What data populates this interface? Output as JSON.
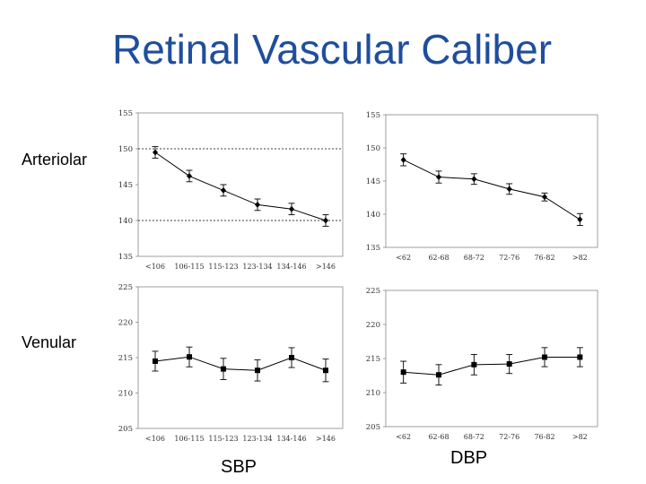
{
  "slide": {
    "title": "Retinal Vascular Caliber",
    "row_labels": [
      "Arteriolar",
      "Venular"
    ],
    "col_labels": [
      "SBP",
      "DBP"
    ]
  },
  "colors": {
    "title": "#1f4e9c",
    "line": "#000000",
    "reference_line": "#000000"
  },
  "chart_data": [
    {
      "id": "arteriolar-sbp",
      "type": "line",
      "row": "Arteriolar",
      "column": "SBP",
      "categories": [
        "<106",
        "106-115",
        "115-123",
        "123-134",
        "134-146",
        ">146"
      ],
      "values": [
        149.5,
        146.2,
        144.2,
        142.2,
        141.6,
        140.0
      ],
      "errors": [
        0.8,
        0.8,
        0.8,
        0.8,
        0.8,
        0.8
      ],
      "ylim": [
        135,
        155
      ],
      "yticks": [
        135,
        140,
        145,
        150,
        155
      ],
      "reference_lines": [
        150,
        140
      ],
      "marker": "diamond",
      "grid": false,
      "legend": "none"
    },
    {
      "id": "arteriolar-dbp",
      "type": "line",
      "row": "Arteriolar",
      "column": "DBP",
      "categories": [
        "<62",
        "62-68",
        "68-72",
        "72-76",
        "76-82",
        ">82"
      ],
      "values": [
        148.2,
        145.6,
        145.3,
        143.8,
        142.6,
        139.2
      ],
      "errors": [
        0.9,
        0.9,
        0.8,
        0.8,
        0.6,
        0.9
      ],
      "ylim": [
        135,
        155
      ],
      "yticks": [
        135,
        140,
        145,
        150,
        155
      ],
      "reference_lines": [],
      "marker": "diamond",
      "grid": false,
      "legend": "none"
    },
    {
      "id": "venular-sbp",
      "type": "line",
      "row": "Venular",
      "column": "SBP",
      "categories": [
        "<106",
        "106-115",
        "115-123",
        "123-134",
        "134-146",
        ">146"
      ],
      "values": [
        214.5,
        215.1,
        213.4,
        213.2,
        215.0,
        213.2
      ],
      "errors": [
        1.4,
        1.4,
        1.5,
        1.5,
        1.4,
        1.6
      ],
      "ylim": [
        205,
        225
      ],
      "yticks": [
        205,
        210,
        215,
        220,
        225
      ],
      "reference_lines": [],
      "marker": "square",
      "grid": false,
      "legend": "none"
    },
    {
      "id": "venular-dbp",
      "type": "line",
      "row": "Venular",
      "column": "DBP",
      "categories": [
        "<62",
        "62-68",
        "68-72",
        "72-76",
        "76-82",
        ">82"
      ],
      "values": [
        213.0,
        212.6,
        214.1,
        214.2,
        215.2,
        215.2
      ],
      "errors": [
        1.6,
        1.5,
        1.5,
        1.4,
        1.4,
        1.4
      ],
      "ylim": [
        205,
        225
      ],
      "yticks": [
        205,
        210,
        215,
        220,
        225
      ],
      "reference_lines": [],
      "marker": "square",
      "grid": false,
      "legend": "none"
    }
  ]
}
